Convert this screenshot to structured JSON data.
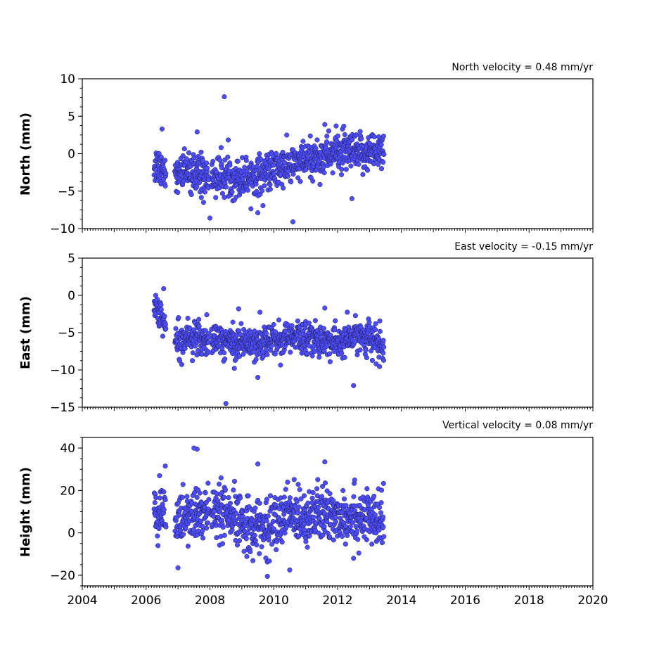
{
  "colors": {
    "marker": "#4d4dff",
    "marker_edge": "#1a1a40"
  },
  "chart_data": [
    {
      "type": "scatter",
      "title": "North velocity = 0.48 mm/yr",
      "ylabel": "North (mm)",
      "xlim": [
        2004,
        2020
      ],
      "ylim": [
        -10,
        10
      ],
      "yticks": [
        -10,
        -5,
        0,
        5,
        10
      ],
      "xticks": [
        2004,
        2006,
        2008,
        2010,
        2012,
        2014,
        2016,
        2018,
        2020
      ],
      "show_xtick_labels": false,
      "data_range": [
        2006.25,
        2013.45
      ],
      "trend": [
        [
          2006.3,
          -1.5
        ],
        [
          2007.0,
          -2.5
        ],
        [
          2008.0,
          -3.0
        ],
        [
          2009.0,
          -3.2
        ],
        [
          2010.0,
          -2.3
        ],
        [
          2011.0,
          -1.0
        ],
        [
          2012.0,
          0.3
        ],
        [
          2012.7,
          -0.2
        ],
        [
          2013.4,
          0.8
        ]
      ],
      "scatter_sd": 1.3,
      "outliers": [
        [
          2008.45,
          7.6
        ],
        [
          2007.6,
          2.9
        ],
        [
          2011.6,
          3.9
        ],
        [
          2006.5,
          3.3
        ],
        [
          2008.0,
          -8.6
        ],
        [
          2010.6,
          -9.1
        ],
        [
          2009.5,
          -7.9
        ],
        [
          2012.45,
          -6.0
        ],
        [
          2007.8,
          -6.5
        ]
      ]
    },
    {
      "type": "scatter",
      "title": "East velocity = -0.15 mm/yr",
      "ylabel": "East (mm)",
      "xlim": [
        2004,
        2020
      ],
      "ylim": [
        -15,
        5
      ],
      "yticks": [
        -15,
        -10,
        -5,
        0,
        5
      ],
      "xticks": [
        2004,
        2006,
        2008,
        2010,
        2012,
        2014,
        2016,
        2018,
        2020
      ],
      "show_xtick_labels": false,
      "data_range": [
        2006.25,
        2013.45
      ],
      "trend": [
        [
          2006.25,
          -1.0
        ],
        [
          2006.6,
          -4.5
        ],
        [
          2007.0,
          -5.5
        ],
        [
          2008.0,
          -6.0
        ],
        [
          2009.0,
          -6.3
        ],
        [
          2010.0,
          -6.0
        ],
        [
          2011.0,
          -5.5
        ],
        [
          2012.0,
          -6.5
        ],
        [
          2012.7,
          -5.2
        ],
        [
          2013.4,
          -6.8
        ]
      ],
      "scatter_sd": 1.1,
      "outliers": [
        [
          2006.55,
          0.9
        ],
        [
          2006.3,
          0.0
        ],
        [
          2008.5,
          -14.5
        ],
        [
          2012.5,
          -12.1
        ],
        [
          2009.5,
          -11.0
        ],
        [
          2011.6,
          -1.7
        ],
        [
          2008.9,
          -1.8
        ],
        [
          2007.9,
          -2.6
        ]
      ]
    },
    {
      "type": "scatter",
      "title": "Vertical velocity = 0.08 mm/yr",
      "ylabel": "Height (mm)",
      "xlim": [
        2004,
        2020
      ],
      "ylim": [
        -25,
        45
      ],
      "yticks": [
        -20,
        0,
        20,
        40
      ],
      "xticks": [
        2004,
        2006,
        2008,
        2010,
        2012,
        2014,
        2016,
        2018,
        2020
      ],
      "tick_labels": [
        "2004",
        "2006",
        "2008",
        "2010",
        "2012",
        "2014",
        "2016",
        "2018",
        "2020"
      ],
      "show_xtick_labels": true,
      "data_range": [
        2006.25,
        2013.45
      ],
      "trend": [
        [
          2006.3,
          8
        ],
        [
          2007.0,
          6
        ],
        [
          2008.0,
          10
        ],
        [
          2009.0,
          5
        ],
        [
          2009.8,
          2
        ],
        [
          2010.5,
          9
        ],
        [
          2011.5,
          8
        ],
        [
          2012.5,
          9
        ],
        [
          2013.4,
          4
        ]
      ],
      "scatter_sd": 6.5,
      "outliers": [
        [
          2007.6,
          39.5
        ],
        [
          2007.5,
          40.0
        ],
        [
          2009.5,
          32.5
        ],
        [
          2011.6,
          33.5
        ],
        [
          2009.8,
          -20.5
        ],
        [
          2007.0,
          -16.5
        ],
        [
          2010.5,
          -17.5
        ],
        [
          2012.5,
          -12.0
        ],
        [
          2006.6,
          31.5
        ]
      ]
    }
  ]
}
